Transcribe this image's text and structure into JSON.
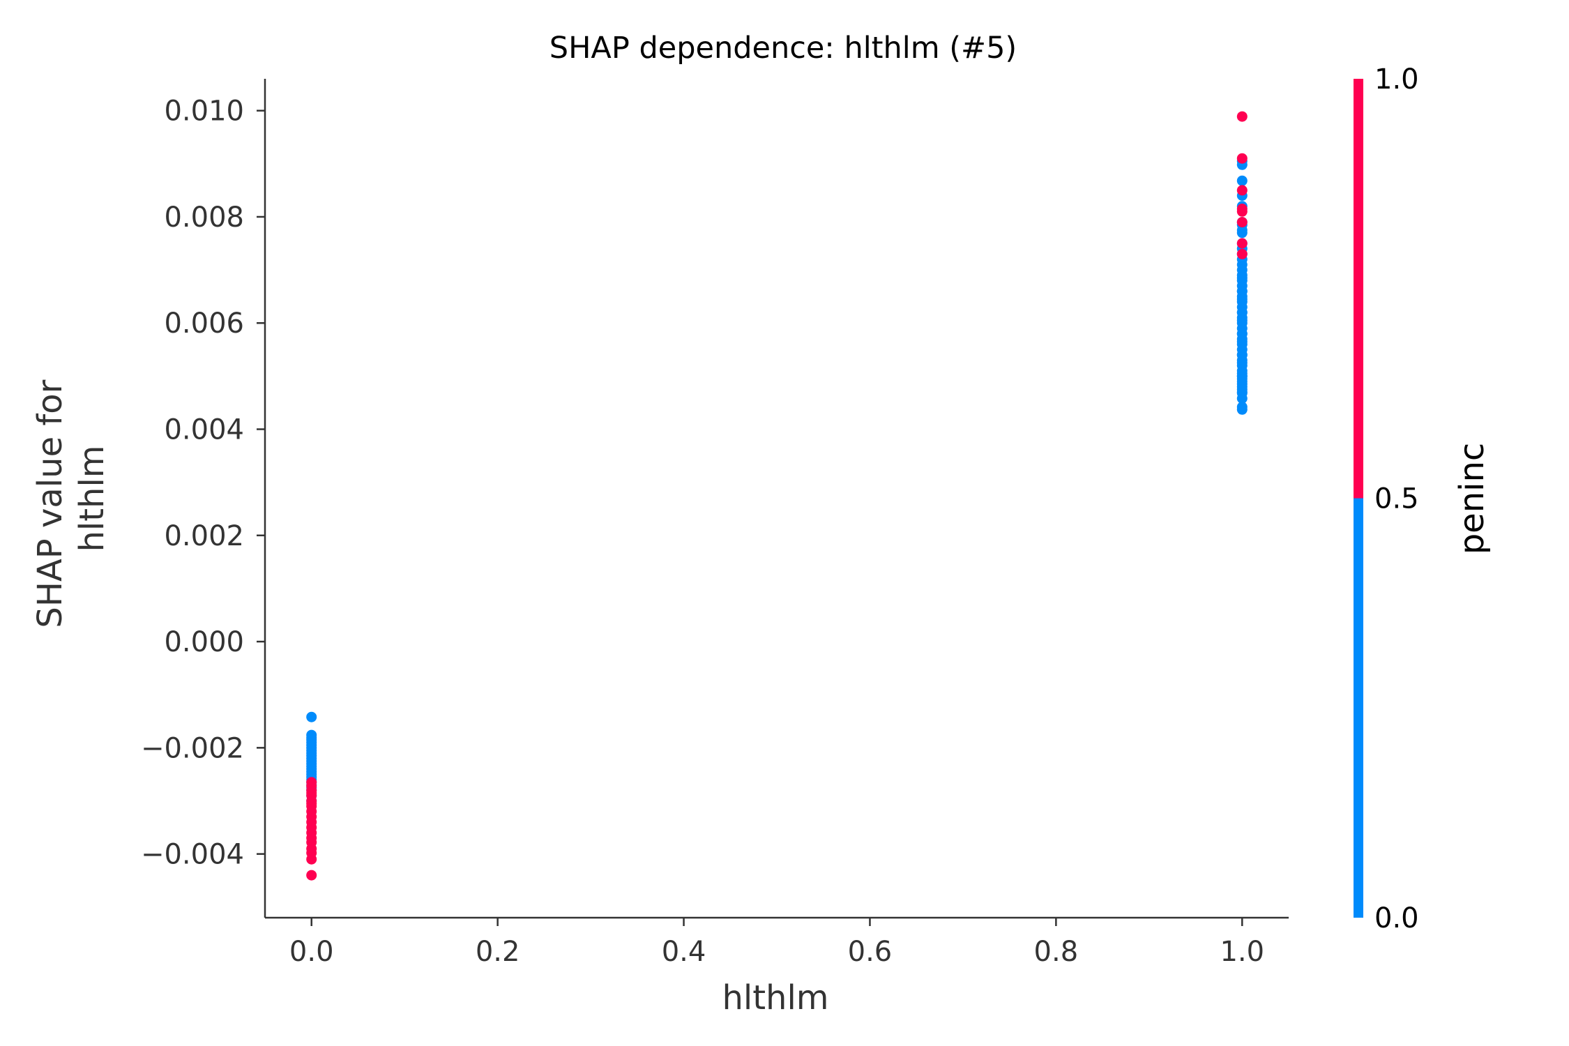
{
  "chart_data": {
    "type": "scatter",
    "title": "SHAP dependence: hlthlm (#5)",
    "xlabel": "hlthlm",
    "ylabel_lines": [
      "SHAP value for",
      "hlthlm"
    ],
    "xlim": [
      -0.05,
      1.05
    ],
    "ylim": [
      -0.0052,
      0.0106
    ],
    "xticks": [
      0.0,
      0.2,
      0.4,
      0.6,
      0.8,
      1.0
    ],
    "xtick_labels": [
      "0.0",
      "0.2",
      "0.4",
      "0.6",
      "0.8",
      "1.0"
    ],
    "yticks": [
      -0.004,
      -0.002,
      0.0,
      0.002,
      0.004,
      0.006,
      0.008,
      0.01
    ],
    "ytick_labels": [
      "−0.004",
      "−0.002",
      "0.000",
      "0.002",
      "0.004",
      "0.006",
      "0.008",
      "0.010"
    ],
    "grid": false,
    "colors": {
      "low": "#008bfb",
      "high": "#ff0051",
      "axis": "#333333"
    },
    "colorbar": {
      "label": "peninc",
      "ticks": [
        0.0,
        0.5,
        1.0
      ],
      "tick_labels": [
        "0.0",
        "0.5",
        "1.0"
      ]
    },
    "series": [
      {
        "color_value": 0,
        "x": [
          0,
          0,
          0,
          0,
          0,
          0,
          0,
          0,
          0,
          0,
          0,
          0,
          0,
          0,
          0,
          0,
          0,
          0,
          0,
          0,
          0,
          0,
          0,
          0,
          0,
          1,
          1,
          1,
          1,
          1,
          1,
          1,
          1,
          1,
          1,
          1,
          1,
          1,
          1,
          1,
          1,
          1,
          1,
          1,
          1,
          1,
          1,
          1,
          1,
          1,
          1,
          1,
          1,
          1,
          1,
          1,
          1,
          1,
          1,
          1,
          1,
          1,
          1,
          1,
          1,
          1,
          1,
          1,
          1,
          1,
          1,
          1,
          1,
          1,
          1,
          1,
          1,
          1,
          1,
          1,
          1
        ],
        "y": [
          -0.00142,
          -0.00176,
          -0.00181,
          -0.00185,
          -0.0019,
          -0.00195,
          -0.002,
          -0.00205,
          -0.0021,
          -0.00215,
          -0.0022,
          -0.00225,
          -0.0023,
          -0.00235,
          -0.0024,
          -0.00245,
          -0.0025,
          -0.00255,
          -0.0026,
          -0.00265,
          -0.0027,
          -0.00275,
          -0.0028,
          -0.0029,
          -0.003,
          0.00898,
          0.00905,
          0.00868,
          0.0084,
          0.0082,
          0.0079,
          0.0077,
          0.0075,
          0.0073,
          0.0071,
          0.0069,
          0.0068,
          0.0067,
          0.0066,
          0.0065,
          0.0064,
          0.0063,
          0.0062,
          0.0061,
          0.006,
          0.0059,
          0.0058,
          0.0057,
          0.0056,
          0.0055,
          0.0054,
          0.0053,
          0.0052,
          0.0051,
          0.005,
          0.0049,
          0.0048,
          0.0047,
          0.00468,
          0.00437,
          0.00442,
          0.0074,
          0.0072,
          0.007,
          0.0066,
          0.0062,
          0.0058,
          0.0054,
          0.005,
          0.00775,
          0.00785,
          0.00685,
          0.00645,
          0.00605,
          0.00565,
          0.00525,
          0.00505,
          0.00495,
          0.00485,
          0.00475,
          0.00458
        ]
      },
      {
        "color_value": 1,
        "x": [
          0,
          0,
          0,
          0,
          0,
          0,
          0,
          0,
          0,
          0,
          0,
          0,
          0,
          0,
          0,
          0,
          0,
          0,
          0,
          1,
          1,
          1,
          1,
          1,
          1,
          1,
          1
        ],
        "y": [
          -0.0044,
          -0.0041,
          -0.00398,
          -0.0039,
          -0.00378,
          -0.0037,
          -0.0036,
          -0.0035,
          -0.0034,
          -0.0033,
          -0.0032,
          -0.0031,
          -0.003,
          -0.0029,
          -0.0028,
          -0.00272,
          -0.00265,
          -0.00305,
          -0.00285,
          0.00989,
          0.0091,
          0.0085,
          0.00815,
          0.0081,
          0.0079,
          0.0075,
          0.0073
        ]
      }
    ]
  }
}
